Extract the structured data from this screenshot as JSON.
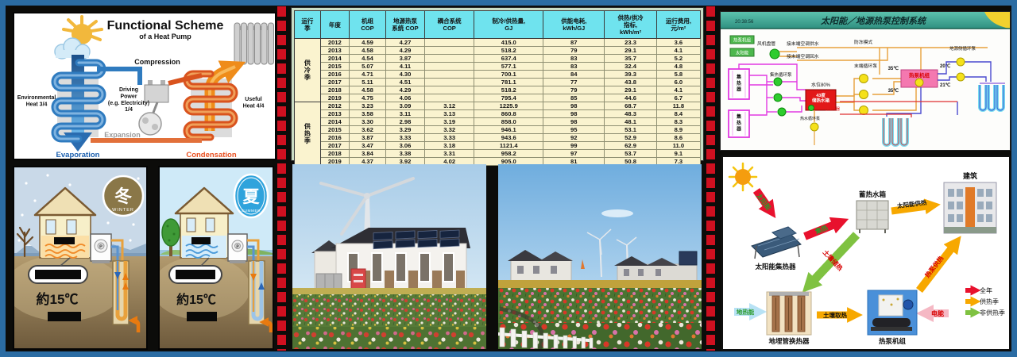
{
  "slide": {
    "frame_color": "#2b6ca3",
    "background_color": "#0c0c0a",
    "separator_color": "#cf1020"
  },
  "scheme": {
    "title": "Functional Scheme",
    "subtitle": "of a Heat Pump",
    "compression": "Compression",
    "driving_power": "Driving\nPower\n(e.g. Electricity)\n1/4",
    "environmental_heat": "Environmental\nHeat 3/4",
    "useful_heat": "Useful\nHeat 4/4",
    "expansion": "Expansion",
    "evaporation": "Evaporation",
    "condensation": "Condensation",
    "evaporation_color": "#1b5fae",
    "condensation_color": "#e84e1e"
  },
  "winter": {
    "badge": "冬",
    "badge_sub": "WINTER",
    "ground_temp": "約15℃",
    "pump_label": "P",
    "badge_color": "#8a7748"
  },
  "summer": {
    "badge": "夏",
    "badge_sub": "SUMMER",
    "ground_temp": "約15℃",
    "pump_label": "P",
    "badge_color": "#2fa3dc"
  },
  "table": {
    "header_bg": "#6fe3ee",
    "body_bg": "#faf3cf",
    "headers": [
      "运行\n季",
      "年度",
      "机组\nCOP",
      "地源热泵\n系统 COP",
      "耦合系统\nCOP",
      "制冷/供热量,\nGJ",
      "供能电耗,\nkWh/GJ",
      "供热/供冷\n指标,\nkWh/m²",
      "运行费用,\n元/m²"
    ],
    "sections": [
      {
        "season": "供冷季",
        "rows": [
          [
            "2012",
            "4.59",
            "4.27",
            "",
            "415.0",
            "87",
            "23.3",
            "3.6"
          ],
          [
            "2013",
            "4.58",
            "4.29",
            "",
            "518.2",
            "79",
            "29.1",
            "4.1"
          ],
          [
            "2014",
            "4.54",
            "3.87",
            "",
            "637.4",
            "83",
            "35.7",
            "5.2"
          ],
          [
            "2015",
            "5.07",
            "4.11",
            "",
            "577.1",
            "83",
            "32.4",
            "4.8"
          ],
          [
            "2016",
            "4.71",
            "4.30",
            "",
            "700.1",
            "84",
            "39.3",
            "5.8"
          ],
          [
            "2017",
            "5.11",
            "4.51",
            "",
            "781.1",
            "77",
            "43.8",
            "6.0"
          ],
          [
            "2018",
            "4.58",
            "4.29",
            "",
            "518.2",
            "79",
            "29.1",
            "4.1"
          ],
          [
            "2019",
            "4.75",
            "4.06",
            "",
            "795.4",
            "85",
            "44.6",
            "6.7"
          ]
        ]
      },
      {
        "season": "供热季",
        "rows": [
          [
            "2012",
            "3.23",
            "3.09",
            "3.12",
            "1225.9",
            "98",
            "68.7",
            "11.8"
          ],
          [
            "2013",
            "3.58",
            "3.11",
            "3.13",
            "860.8",
            "98",
            "48.3",
            "8.4"
          ],
          [
            "2014",
            "3.30",
            "2.98",
            "3.19",
            "858.0",
            "98",
            "48.1",
            "8.3"
          ],
          [
            "2015",
            "3.62",
            "3.29",
            "3.32",
            "946.1",
            "95",
            "53.1",
            "8.9"
          ],
          [
            "2016",
            "3.87",
            "3.33",
            "3.33",
            "943.6",
            "92",
            "52.9",
            "8.6"
          ],
          [
            "2017",
            "3.47",
            "3.06",
            "3.18",
            "1121.4",
            "99",
            "62.9",
            "11.0"
          ],
          [
            "2018",
            "3.84",
            "3.38",
            "3.31",
            "958.2",
            "97",
            "53.7",
            "9.1"
          ],
          [
            "2019",
            "4.37",
            "3.92",
            "4.02",
            "905.0",
            "81",
            "50.8",
            "7.3"
          ]
        ]
      }
    ]
  },
  "control": {
    "clock": "20:38:56",
    "title": "太阳能／地源热泵控制系统",
    "legend_hp": "热泵机组",
    "legend_solar": "太阳能",
    "fan_coil": "风机盘管",
    "ac_supply": "接末端空调供水",
    "ac_return": "接末端空调回水",
    "antifreeze": "防冻模式",
    "terminal_pump": "末端循环泵",
    "collector": "集热器",
    "collector_pump": "集热循环泵",
    "water_level": "水位80%",
    "tank": "43度\n储热水箱",
    "heater": "电加热器",
    "hot_water_pump": "热水循环泵",
    "hp_unit": "热泵机组",
    "temp_35_supply": "35℃",
    "temp_35_return": "35℃",
    "temp_20": "20℃",
    "temp_21": "21℃",
    "ground_pump": "地源侧循环泵",
    "tank_color": "#e21818",
    "hp_box_color": "#f478b0"
  },
  "solar_flow": {
    "arrow_solar": "太阳能",
    "arrow_collect": "集热",
    "tank_label": "蓄热水箱",
    "arrow_solar_heating": "太阳能供热",
    "building_label": "建筑",
    "arrow_soil_store": "土壤储热",
    "arrow_geo": "地热能",
    "collector_label": "太阳能集热器",
    "exchanger_label": "地埋管换热器",
    "arrow_soil_extract": "土壤取热",
    "hp_label": "热泵机组",
    "arrow_electric": "电能",
    "arrow_hp_heating": "热泵供热",
    "legend": [
      {
        "label": "全年",
        "color": "#e8112d"
      },
      {
        "label": "供热季",
        "color": "#f7a800"
      },
      {
        "label": "非供热季",
        "color": "#7fc241"
      }
    ]
  }
}
